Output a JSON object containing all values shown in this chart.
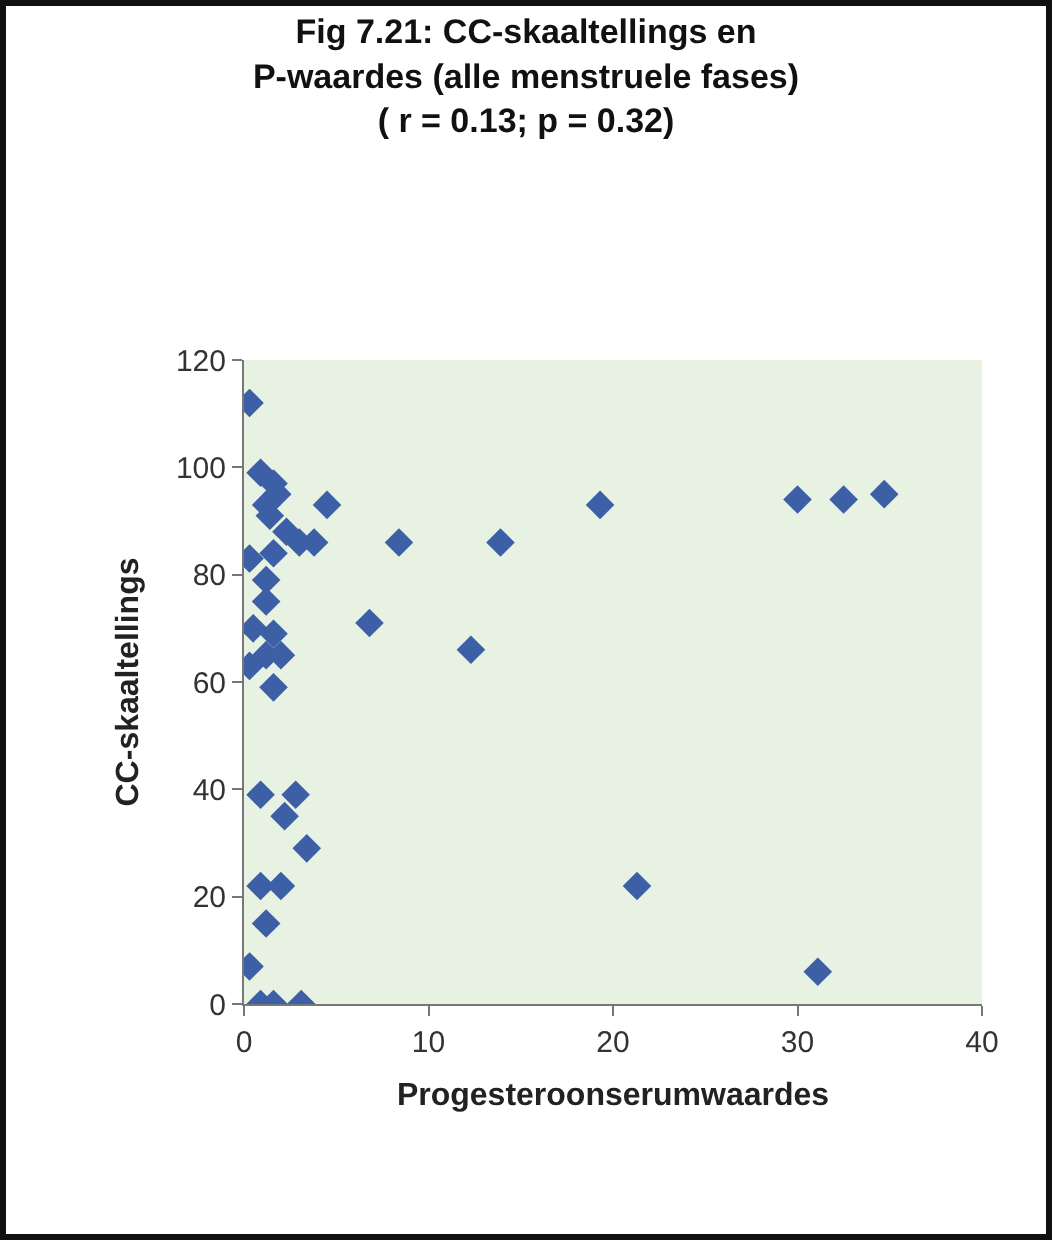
{
  "chart_data": {
    "type": "scatter",
    "title": "Fig 7.21: CC-skaaltellings en\nP-waardes (alle menstruele fases)\n( r = 0.13; p = 0.32)",
    "xlabel": "Progesteroonserumwaardes",
    "ylabel": "CC-skaaltellings",
    "x": [
      0.3,
      0.9,
      1.6,
      1.2,
      1.8,
      1.4,
      4.5,
      3.0,
      3.8,
      0.3,
      1.6,
      2.3,
      1.2,
      1.2,
      0.5,
      1.6,
      1.2,
      2.0,
      0.3,
      1.6,
      0.9,
      2.8,
      2.2,
      3.4,
      0.9,
      2.0,
      1.2,
      0.3,
      0.9,
      1.6,
      3.1,
      19.3,
      30.0,
      32.5,
      34.7,
      8.4,
      13.9,
      6.8,
      12.3,
      21.3,
      31.1
    ],
    "series": [
      {
        "color": "#3c5fa6",
        "values": [
          112,
          99,
          97,
          93,
          95,
          91,
          93,
          86,
          86,
          83,
          84,
          88,
          79,
          75,
          70,
          69,
          65,
          65,
          63,
          59,
          39,
          39,
          35,
          29,
          22,
          22,
          15,
          7,
          0,
          0,
          0,
          93,
          94,
          94,
          95,
          86,
          86,
          71,
          66,
          22,
          6
        ]
      }
    ],
    "xlim": [
      0,
      40
    ],
    "xticks": [
      0,
      10,
      20,
      30,
      40
    ],
    "ylim": [
      0,
      120
    ],
    "yticks": [
      0,
      20,
      40,
      60,
      80,
      100,
      120
    ],
    "marker": "diamond"
  }
}
